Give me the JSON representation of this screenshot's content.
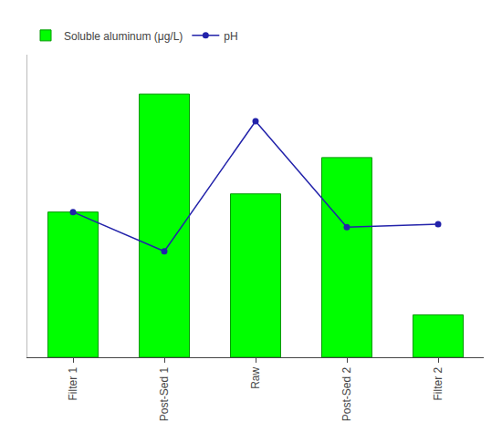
{
  "chart_data": {
    "type": "bar",
    "categories": [
      "Filter 1",
      "Post-Sed 1",
      "Raw",
      "Post-Sed 2",
      "Filter 2"
    ],
    "series": [
      {
        "name": "Soluble aluminum (μg/L)",
        "type": "bar",
        "color": "#00ff00",
        "values": [
          480,
          870,
          540,
          660,
          140
        ]
      },
      {
        "name": "pH",
        "type": "line",
        "color": "#2222aa",
        "marker": "o",
        "values": [
          480,
          350,
          780,
          430,
          440
        ]
      }
    ],
    "ylim": [
      0,
      1000
    ],
    "tick_labels": "x",
    "legend": "upper left",
    "grid": false
  }
}
